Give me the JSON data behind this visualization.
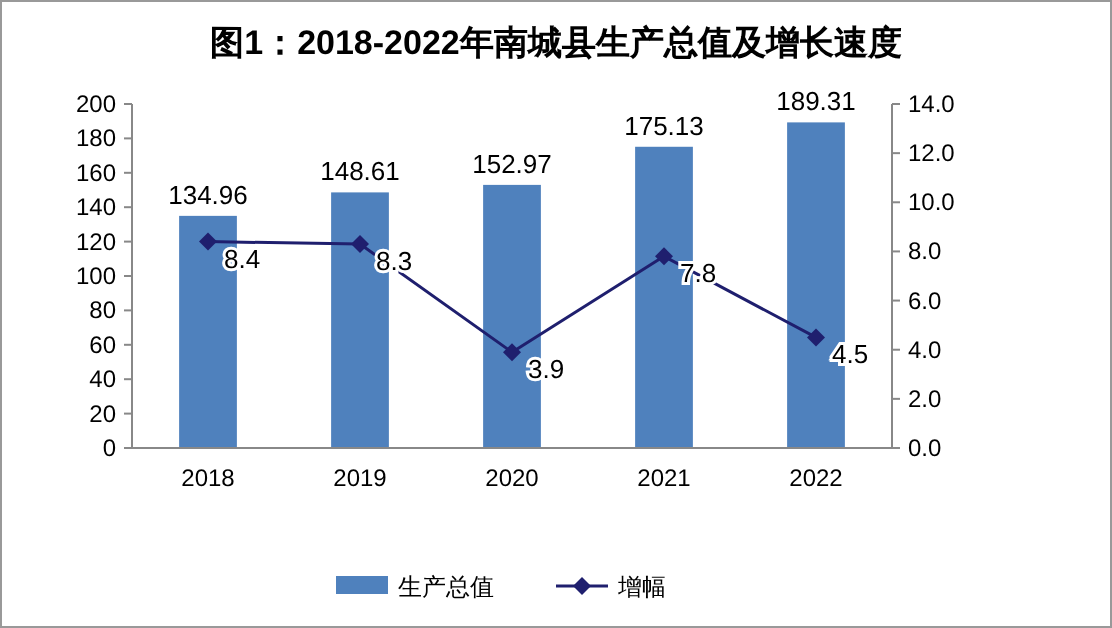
{
  "chart_data": {
    "type": "bar",
    "title": "图1：2018-2022年南城县生产总值及增长速度",
    "categories": [
      "2018",
      "2019",
      "2020",
      "2021",
      "2022"
    ],
    "series": [
      {
        "name": "生产总值",
        "color": "#4f81bd",
        "values": [
          134.96,
          148.61,
          152.97,
          175.13,
          189.31
        ]
      },
      {
        "name": "增幅",
        "type": "line",
        "axis": "y2",
        "color": "#1f1f6e",
        "marker": "diamond",
        "values": [
          8.4,
          8.3,
          3.9,
          7.8,
          4.5
        ]
      }
    ],
    "ylim": [
      0,
      200
    ],
    "yticks": [
      0,
      20,
      40,
      60,
      80,
      100,
      120,
      140,
      160,
      180,
      200
    ],
    "y2lim": [
      0,
      14
    ],
    "y2ticks": [
      {
        "value": 0,
        "label": "0.0"
      },
      {
        "value": 2,
        "label": "2.0"
      },
      {
        "value": 4,
        "label": "4.0"
      },
      {
        "value": 6,
        "label": "6.0"
      },
      {
        "value": 8,
        "label": "8.0"
      },
      {
        "value": 10,
        "label": "10.0"
      },
      {
        "value": 12,
        "label": "12.0"
      },
      {
        "value": 14,
        "label": "14.0"
      }
    ],
    "data_labels": true,
    "grid": false,
    "legend": "bottom"
  }
}
